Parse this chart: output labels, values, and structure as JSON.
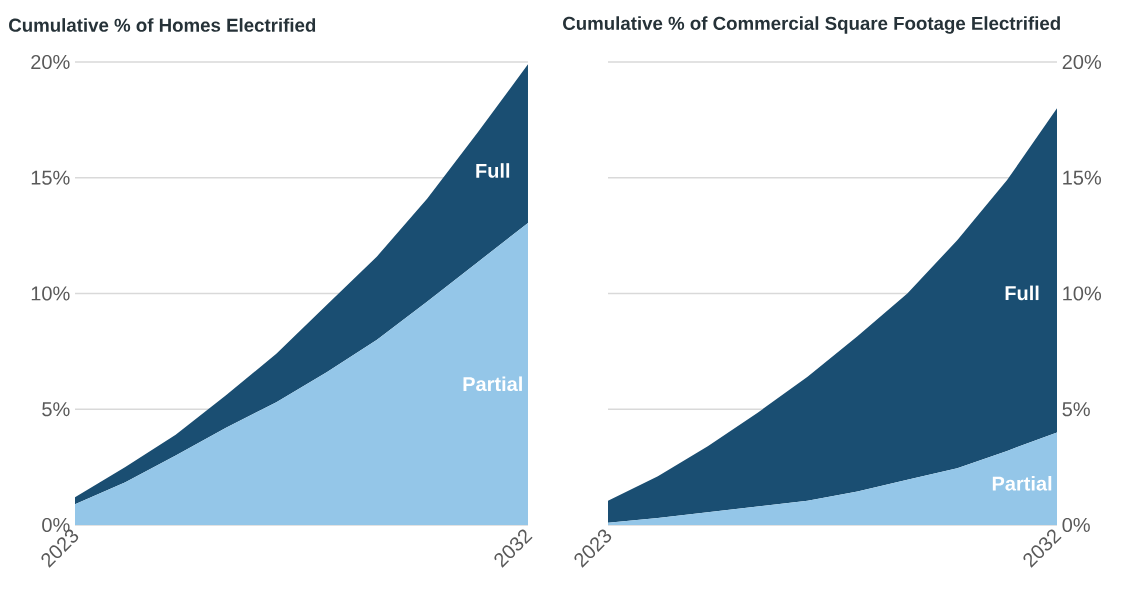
{
  "chart_data": [
    {
      "type": "area",
      "title": "Cumulative % of Homes Electrified",
      "stacked": true,
      "grid": "y",
      "legend": false,
      "categories": [
        "2023",
        null,
        null,
        null,
        null,
        null,
        null,
        null,
        null,
        "2032"
      ],
      "ylim": [
        0,
        20
      ],
      "yticks": [
        {
          "value": 0,
          "label": "0%"
        },
        {
          "value": 5,
          "label": "5%"
        },
        {
          "value": 10,
          "label": "10%"
        },
        {
          "value": 15,
          "label": "15%"
        },
        {
          "value": 20,
          "label": "20%"
        }
      ],
      "series": [
        {
          "name": "Partial",
          "color": "#94c6e8",
          "values": [
            0.9,
            1.85,
            3.0,
            4.2,
            5.3,
            6.6,
            8.0,
            9.65,
            11.35,
            13.05
          ]
        },
        {
          "name": "Full",
          "color": "#1a4e72",
          "values": [
            0.3,
            0.65,
            0.9,
            1.4,
            2.1,
            2.9,
            3.6,
            4.45,
            5.6,
            6.85
          ]
        }
      ]
    },
    {
      "type": "area",
      "title": "Cumulative % of Commercial Square Footage Electrified",
      "stacked": true,
      "grid": "y",
      "legend": false,
      "categories": [
        "2023",
        null,
        null,
        null,
        null,
        null,
        null,
        null,
        null,
        "2032"
      ],
      "ylim": [
        0,
        20
      ],
      "yticks": [
        {
          "value": 0,
          "label": "0%"
        },
        {
          "value": 5,
          "label": "5%"
        },
        {
          "value": 10,
          "label": "10%"
        },
        {
          "value": 15,
          "label": "15%"
        },
        {
          "value": 20,
          "label": "20%"
        }
      ],
      "series": [
        {
          "name": "Partial",
          "color": "#94c6e8",
          "values": [
            0.1,
            0.3,
            0.55,
            0.8,
            1.05,
            1.45,
            1.95,
            2.45,
            3.2,
            4.0
          ]
        },
        {
          "name": "Full",
          "color": "#1a4e72",
          "values": [
            0.95,
            1.8,
            2.85,
            4.05,
            5.35,
            6.7,
            8.05,
            9.85,
            11.7,
            14.0
          ]
        }
      ]
    }
  ]
}
